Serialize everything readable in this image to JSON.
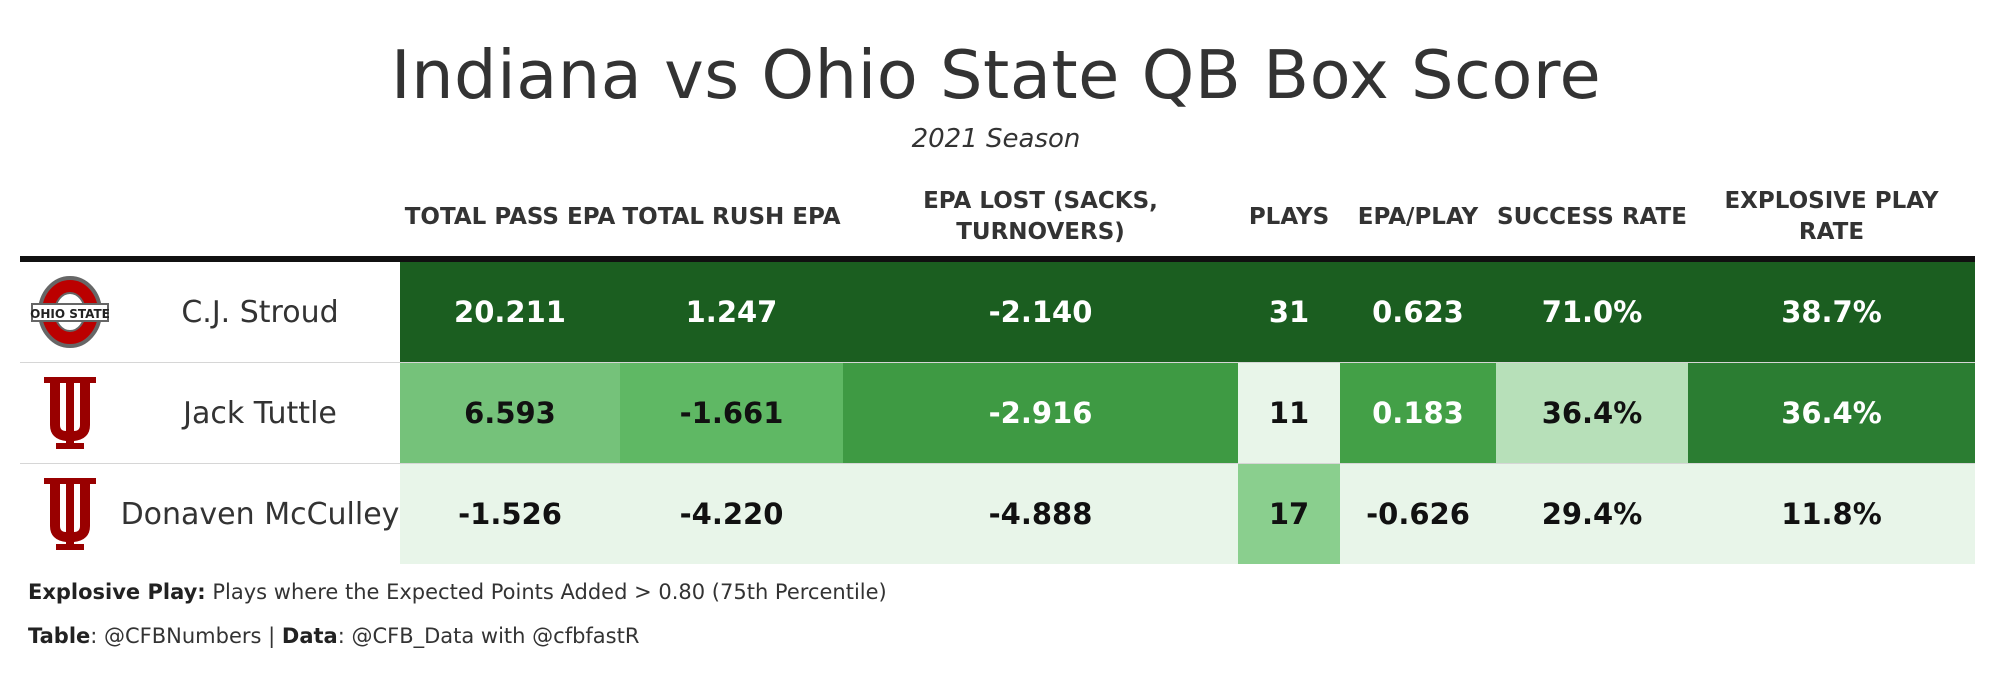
{
  "title": "Indiana vs Ohio State QB Box Score",
  "subtitle": "2021 Season",
  "chart_data": {
    "type": "table",
    "columns": [
      "TOTAL PASS EPA",
      "TOTAL RUSH EPA",
      "EPA LOST (SACKS, TURNOVERS)",
      "PLAYS",
      "EPA/PLAY",
      "SUCCESS RATE",
      "EXPLOSIVE PLAY RATE"
    ],
    "rows": [
      {
        "team": "Ohio State",
        "logo_icon": "ohio-state-logo-icon",
        "player": "C.J. Stroud",
        "values": [
          "20.211",
          "1.247",
          "-2.140",
          "31",
          "0.623",
          "71.0%",
          "38.7%"
        ],
        "colors": [
          "#1b5e20",
          "#1b5e20",
          "#1b5e20",
          "#1b5e20",
          "#1b5e20",
          "#1b5e20",
          "#1b5e20"
        ]
      },
      {
        "team": "Indiana",
        "logo_icon": "indiana-logo-icon",
        "player": "Jack Tuttle",
        "values": [
          "6.593",
          "-1.661",
          "-2.916",
          "11",
          "0.183",
          "36.4%",
          "36.4%"
        ],
        "colors": [
          "#75c27a",
          "#5fb864",
          "#3e9a43",
          "#e8f5e9",
          "#43a047",
          "#b7e0b9",
          "#2b7d32"
        ]
      },
      {
        "team": "Indiana",
        "logo_icon": "indiana-logo-icon",
        "player": "Donaven McCulley",
        "values": [
          "-1.526",
          "-4.220",
          "-4.888",
          "17",
          "-0.626",
          "29.4%",
          "11.8%"
        ],
        "colors": [
          "#e8f5e9",
          "#e8f5e9",
          "#e8f5e9",
          "#8acf8e",
          "#e8f5e9",
          "#e8f5e9",
          "#e8f5e9"
        ]
      }
    ]
  },
  "footnotes": {
    "explosive_label": "Explosive Play:",
    "explosive_text": " Plays where the Expected Points Added > 0.80 (75th Percentile)",
    "table_label": "Table",
    "table_text": ": @CFBNumbers | ",
    "data_label": "Data",
    "data_text": ": @CFB_Data with @cfbfastR"
  },
  "colors": {
    "ohio_state_red": "#bb0000",
    "ohio_state_gray": "#666666",
    "indiana_crimson": "#990000",
    "dark_text_threshold_bg": "#1b5e20"
  }
}
